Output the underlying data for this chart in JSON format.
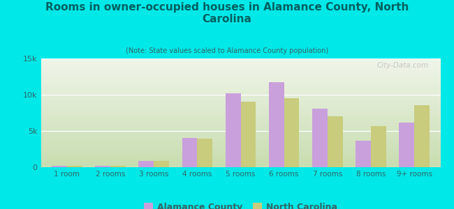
{
  "title": "Rooms in owner-occupied houses in Alamance County, North\nCarolina",
  "subtitle": "(Note: State values scaled to Alamance County population)",
  "categories": [
    "1 room",
    "2 rooms",
    "3 rooms",
    "4 rooms",
    "5 rooms",
    "6 rooms",
    "7 rooms",
    "8 rooms",
    "9+ rooms"
  ],
  "alamance": [
    200,
    150,
    900,
    4000,
    10200,
    11700,
    8100,
    3700,
    6200
  ],
  "nc": [
    150,
    150,
    850,
    3900,
    9000,
    9500,
    7000,
    5700,
    8600
  ],
  "alamance_color": "#c9a0dc",
  "nc_color": "#c8cc7c",
  "background_outer": "#00e8e8",
  "ylim": [
    0,
    15000
  ],
  "yticks": [
    0,
    5000,
    10000,
    15000
  ],
  "ytick_labels": [
    "0",
    "5k",
    "10k",
    "15k"
  ],
  "watermark": "City-Data.com",
  "legend_alamance": "Alamance County",
  "legend_nc": "North Carolina",
  "bar_width": 0.35,
  "grad_bottom": "#c8ddb0",
  "grad_top": "#f0f5ea",
  "title_color": "#006060",
  "subtitle_color": "#336666",
  "tick_color": "#336666"
}
